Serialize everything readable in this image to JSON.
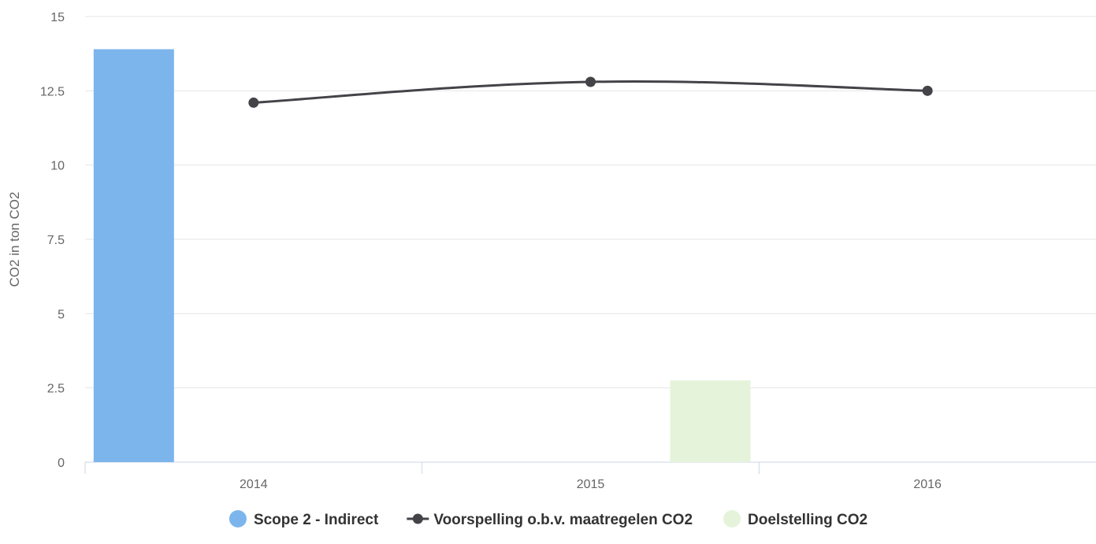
{
  "chart_data": {
    "type": "bar",
    "categories": [
      "2014",
      "2015",
      "2016"
    ],
    "ylabel": "CO2 in ton CO2",
    "xlabel": "",
    "ylim": [
      0,
      15
    ],
    "yticks": [
      0,
      2.5,
      5,
      7.5,
      10,
      12.5,
      15
    ],
    "ytick_labels": [
      "0",
      "2.5",
      "5",
      "7.5",
      "10",
      "12.5",
      "15"
    ],
    "grid": true,
    "legend_position": "bottom",
    "series": [
      {
        "name": "Scope 2 - Indirect",
        "type": "bar",
        "color": "#7cb5ec",
        "values": [
          13.9,
          null,
          null
        ]
      },
      {
        "name": "Voorspelling o.b.v. maatregelen CO2",
        "type": "line",
        "color": "#434348",
        "values": [
          12.1,
          12.8,
          12.5
        ]
      },
      {
        "name": "Doelstelling CO2",
        "type": "bar",
        "color": "#e4f3da",
        "values": [
          null,
          2.75,
          null
        ]
      }
    ]
  }
}
